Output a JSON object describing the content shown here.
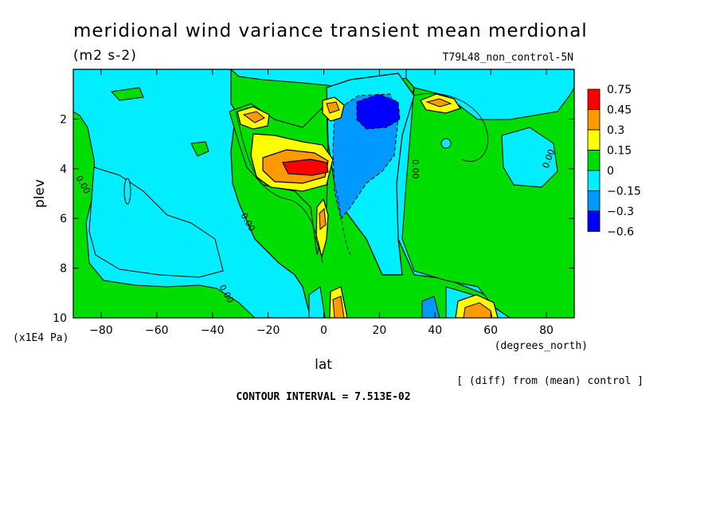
{
  "chart_data": {
    "type": "heatmap",
    "title": "meridional wind variance transient mean merdional",
    "units": "(m2 s-2)",
    "experiment": "T79L48_non_control-5N",
    "xlabel": "lat",
    "xunit": "(degrees_north)",
    "ylabel": "plev",
    "yunit": "(x1E4 Pa)",
    "xlim": [
      -90,
      90
    ],
    "ylim": [
      10,
      0
    ],
    "xticks": [
      -80,
      -60,
      -40,
      -20,
      0,
      20,
      40,
      60,
      80
    ],
    "yticks": [
      2,
      4,
      6,
      8,
      10
    ],
    "diff_note": "[ (diff) from (mean) control ]",
    "contour_interval": "CONTOUR INTERVAL = 7.513E-02",
    "contour_labels": [
      "0.00",
      "0.00",
      "0.00",
      "0.00",
      "0.00"
    ],
    "legend": {
      "placement": "right",
      "levels": [
        "0.75",
        "0.45",
        "0.3",
        "0.15",
        "0",
        "-0.15",
        "-0.3",
        "-0.6"
      ],
      "colors": [
        "#ff0000",
        "#ff9900",
        "#ffff00",
        "#00dd00",
        "#00eeff",
        "#0099ff",
        "#0000ff"
      ]
    },
    "features": [
      {
        "lat": -2,
        "plev": 3.9,
        "value": 0.75
      },
      {
        "lat": -10,
        "plev": 3.8,
        "value": 0.45
      },
      {
        "lat": -25,
        "plev": 2.0,
        "value": 0.3
      },
      {
        "lat": 38,
        "plev": 1.5,
        "value": 0.3
      },
      {
        "lat": 4,
        "plev": 1.5,
        "value": 0.3
      },
      {
        "lat": -1,
        "plev": 6.0,
        "value": 0.3
      },
      {
        "lat": 5,
        "plev": 9.6,
        "value": 0.3
      },
      {
        "lat": 52,
        "plev": 9.5,
        "value": 0.3
      },
      {
        "lat": 20,
        "plev": 1.8,
        "value": -0.6
      },
      {
        "lat": 22,
        "plev": 3.5,
        "value": -0.3
      },
      {
        "lat": 38,
        "plev": 9.7,
        "value": -0.3
      },
      {
        "lat": -60,
        "plev": 5.0,
        "value": -0.15
      },
      {
        "lat": 72,
        "plev": 4.0,
        "value": -0.15
      },
      {
        "lat": 60,
        "plev": 8.0,
        "value": 0.0
      }
    ]
  }
}
